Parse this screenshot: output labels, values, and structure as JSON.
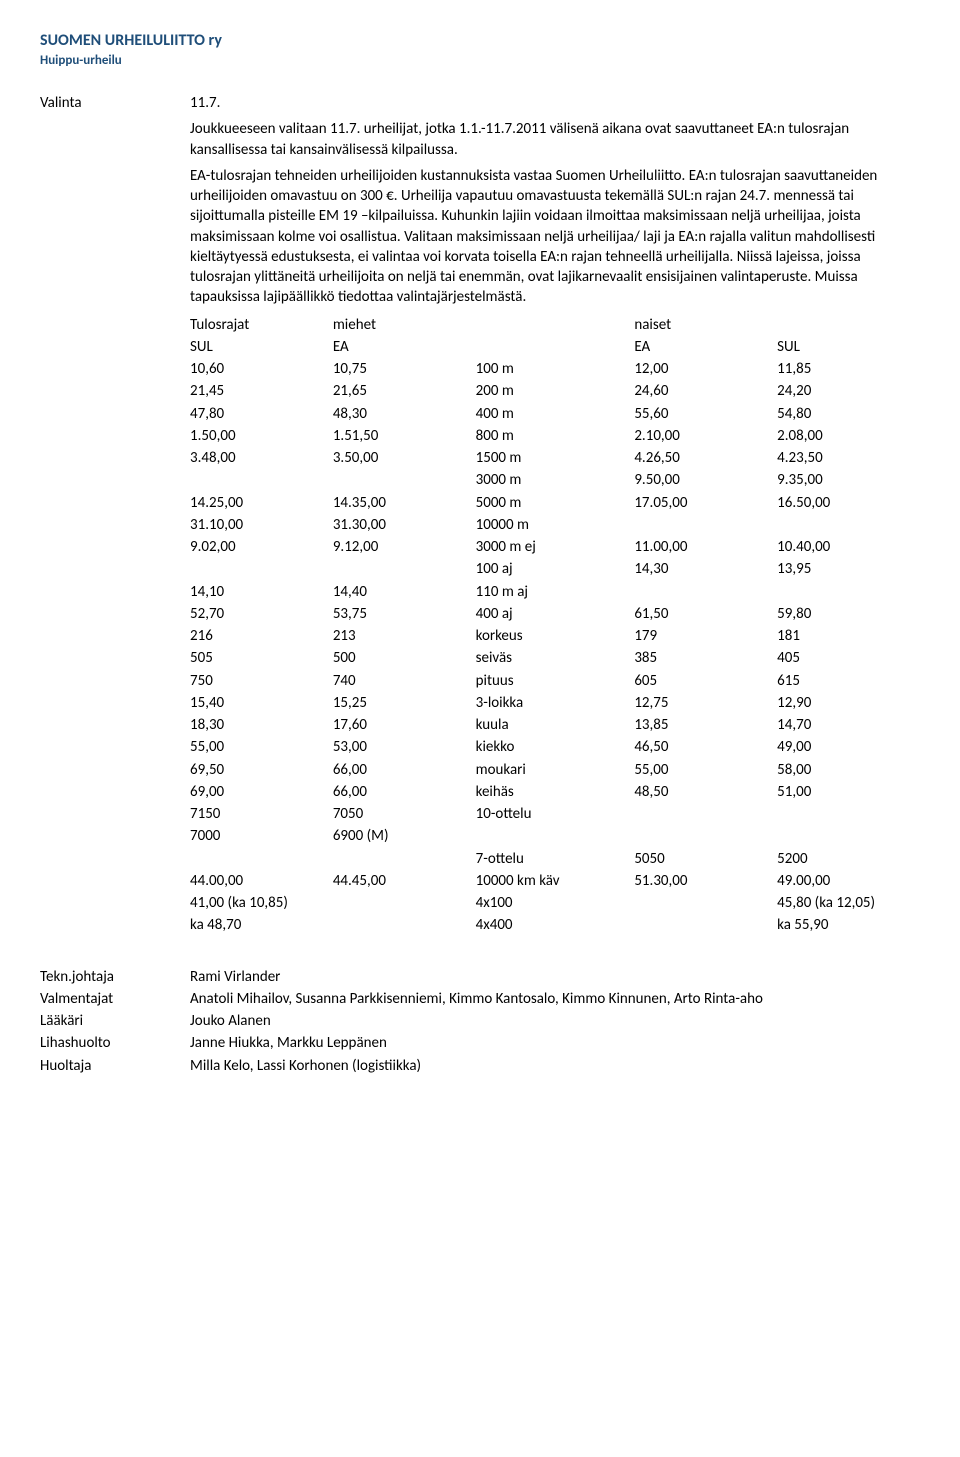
{
  "header": {
    "org_title": "SUOMEN URHEILULIITTO ry",
    "org_sub": "Huippu-urheilu"
  },
  "section": {
    "label": "Valinta",
    "date": "11.7.",
    "para1": "Joukkueeseen valitaan 11.7. urheilijat, jotka 1.1.-11.7.2011 välisenä aikana ovat saavuttaneet EA:n tulosrajan kansallisessa tai kansainvälisessä kilpailussa.",
    "para2": "EA-tulosrajan tehneiden urheilijoiden kustannuksista vastaa Suomen Urheiluliitto. EA:n tulosrajan saavuttaneiden urheilijoiden omavastuu on 300 €. Urheilija vapautuu omavastuusta tekemällä SUL:n rajan 24.7. mennessä tai sijoittumalla pisteille EM 19 –kilpailuissa. Kuhunkin lajiin voidaan ilmoittaa maksimissaan neljä urheilijaa, joista maksimissaan kolme voi osallistua. Valitaan maksimissaan neljä urheilijaa/ laji ja EA:n rajalla valitun mahdollisesti kieltäytyessä edustuksesta, ei valintaa voi korvata toisella EA:n rajan tehneellä urheilijalla. Niissä lajeissa, joissa tulosrajan ylittäneitä urheilijoita on neljä tai enemmän, ovat lajikarnevaalit ensisijainen valintaperuste. Muissa tapauksissa lajipäällikkö tiedottaa valintajärjestelmästä."
  },
  "table": {
    "h_tulosrajat": "Tulosrajat",
    "h_miehet": "miehet",
    "h_naiset": "naiset",
    "h_sul": "SUL",
    "h_ea": "EA",
    "rows": [
      {
        "sm": "10,60",
        "em": "10,75",
        "ev": "100 m",
        "ew": "12,00",
        "sw": "11,85"
      },
      {
        "sm": "21,45",
        "em": "21,65",
        "ev": "200 m",
        "ew": "24,60",
        "sw": "24,20"
      },
      {
        "sm": "47,80",
        "em": "48,30",
        "ev": "400 m",
        "ew": "55,60",
        "sw": "54,80"
      },
      {
        "sm": "1.50,00",
        "em": "1.51,50",
        "ev": "800 m",
        "ew": "2.10,00",
        "sw": "2.08,00"
      },
      {
        "sm": "3.48,00",
        "em": "3.50,00",
        "ev": "1500 m",
        "ew": "4.26,50",
        "sw": "4.23,50"
      },
      {
        "sm": "",
        "em": "",
        "ev": "3000 m",
        "ew": "9.50,00",
        "sw": "9.35,00"
      },
      {
        "sm": "14.25,00",
        "em": "14.35,00",
        "ev": "5000 m",
        "ew": "17.05,00",
        "sw": "16.50,00"
      },
      {
        "sm": "31.10,00",
        "em": "31.30,00",
        "ev": "10000 m",
        "ew": "",
        "sw": ""
      },
      {
        "sm": "9.02,00",
        "em": "9.12,00",
        "ev": "3000 m ej",
        "ew": "11.00,00",
        "sw": "10.40,00"
      },
      {
        "sm": "",
        "em": "",
        "ev": "100 aj",
        "ew": "14,30",
        "sw": "13,95"
      },
      {
        "sm": "14,10",
        "em": "14,40",
        "ev": "110 m aj",
        "ew": "",
        "sw": ""
      },
      {
        "sm": "52,70",
        "em": "53,75",
        "ev": "400 aj",
        "ew": "61,50",
        "sw": "59,80"
      },
      {
        "sm": "216",
        "em": "213",
        "ev": "korkeus",
        "ew": "179",
        "sw": "181"
      },
      {
        "sm": "505",
        "em": "500",
        "ev": "seiväs",
        "ew": "385",
        "sw": "405"
      },
      {
        "sm": "750",
        "em": "740",
        "ev": "pituus",
        "ew": "605",
        "sw": "615"
      },
      {
        "sm": "15,40",
        "em": "15,25",
        "ev": "3-loikka",
        "ew": "12,75",
        "sw": "12,90"
      },
      {
        "sm": "18,30",
        "em": "17,60",
        "ev": "kuula",
        "ew": "13,85",
        "sw": "14,70"
      },
      {
        "sm": "55,00",
        "em": "53,00",
        "ev": "kiekko",
        "ew": "46,50",
        "sw": "49,00"
      },
      {
        "sm": "69,50",
        "em": "66,00",
        "ev": "moukari",
        "ew": "55,00",
        "sw": "58,00"
      },
      {
        "sm": "69,00",
        "em": "66,00",
        "ev": "keihäs",
        "ew": "48,50",
        "sw": "51,00"
      },
      {
        "sm": "7150",
        "em": "7050",
        "ev": "10-ottelu",
        "ew": "",
        "sw": ""
      },
      {
        "sm": "7000",
        "em": "6900 (M)",
        "ev": "",
        "ew": "",
        "sw": ""
      },
      {
        "sm": "",
        "em": "",
        "ev": "7-ottelu",
        "ew": "5050",
        "sw": "5200"
      },
      {
        "sm": "44.00,00",
        "em": "44.45,00",
        "ev": "10000 km käv",
        "ew": "51.30,00",
        "sw": "49.00,00"
      },
      {
        "sm": "41,00 (ka 10,85)",
        "em": "",
        "ev": "4x100",
        "ew": "",
        "sw": "45,80 (ka 12,05)"
      },
      {
        "sm": "ka 48,70",
        "em": "",
        "ev": "4x400",
        "ew": "",
        "sw": "ka 55,90"
      }
    ]
  },
  "staff": {
    "rows": [
      {
        "label": "Tekn.johtaja",
        "body": "Rami Virlander"
      },
      {
        "label": "Valmentajat",
        "body": "Anatoli Mihailov, Susanna Parkkisenniemi, Kimmo Kantosalo, Kimmo Kinnunen, Arto Rinta-aho"
      },
      {
        "label": "Lääkäri",
        "body": "Jouko Alanen"
      },
      {
        "label": "Lihashuolto",
        "body": "Janne Hiukka, Markku Leppänen"
      },
      {
        "label": "Huoltaja",
        "body": "Milla Kelo, Lassi Korhonen (logistiikka)"
      }
    ]
  }
}
